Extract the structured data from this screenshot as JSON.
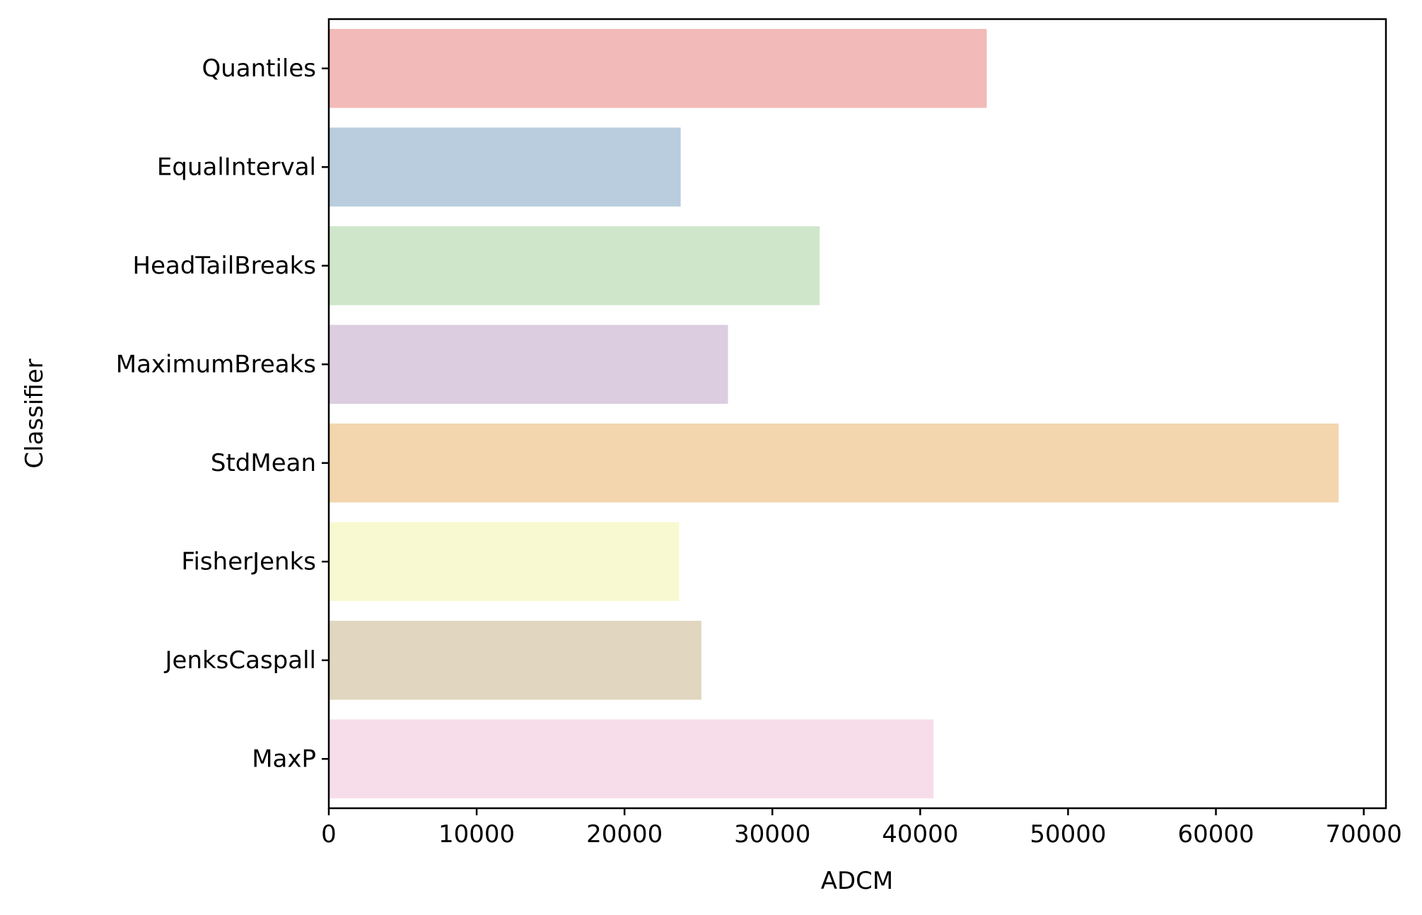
{
  "chart_data": {
    "type": "bar",
    "orientation": "horizontal",
    "categories": [
      "Quantiles",
      "EqualInterval",
      "HeadTailBreaks",
      "MaximumBreaks",
      "StdMean",
      "FisherJenks",
      "JenksCaspall",
      "MaxP"
    ],
    "values": [
      44500,
      23800,
      33200,
      27000,
      68300,
      23700,
      25200,
      40900
    ],
    "colors": [
      "#f2bab8",
      "#b9cddf",
      "#cfe6cb",
      "#dccde1",
      "#f3d6ae",
      "#f8f9d1",
      "#e1d6c0",
      "#f7dde9"
    ],
    "xlabel": "ADCM",
    "ylabel": "Classifier",
    "xlim": [
      0,
      71500
    ],
    "xticks": [
      0,
      10000,
      20000,
      30000,
      40000,
      50000,
      60000,
      70000
    ],
    "xtick_labels": [
      "0",
      "10000",
      "20000",
      "30000",
      "40000",
      "50000",
      "60000",
      "70000"
    ],
    "grid": false,
    "legend": "none"
  }
}
